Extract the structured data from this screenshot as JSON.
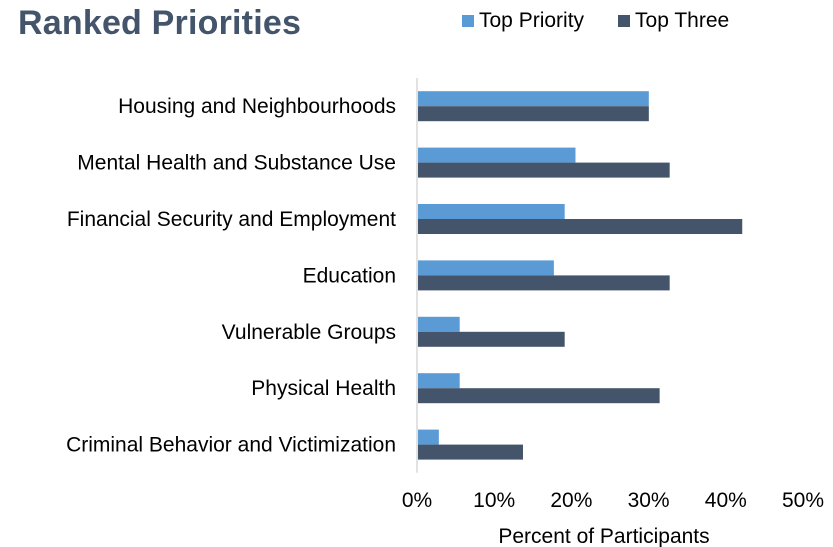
{
  "chart_data": {
    "type": "bar",
    "orientation": "horizontal",
    "title": "Ranked Priorities",
    "xlabel": "Percent of Participants",
    "ylabel": "",
    "xlim": [
      0,
      50
    ],
    "xticks": [
      "0%",
      "10%",
      "20%",
      "30%",
      "40%",
      "50%"
    ],
    "categories": [
      "Housing and Neighbourhoods",
      "Mental Health and Substance Use",
      "Financial Security and Employment",
      "Education",
      "Vulnerable Groups",
      "Physical Health",
      "Criminal Behavior and Victimization"
    ],
    "series": [
      {
        "name": "Top Priority",
        "color": "#5B9BD5",
        "values": [
          29.9,
          20.4,
          19.0,
          17.6,
          5.4,
          5.4,
          2.7
        ]
      },
      {
        "name": "Top Three",
        "color": "#44546A",
        "values": [
          29.9,
          32.6,
          42.0,
          32.6,
          19.0,
          31.3,
          13.6
        ]
      }
    ],
    "legend_position": "top",
    "grid": false
  }
}
